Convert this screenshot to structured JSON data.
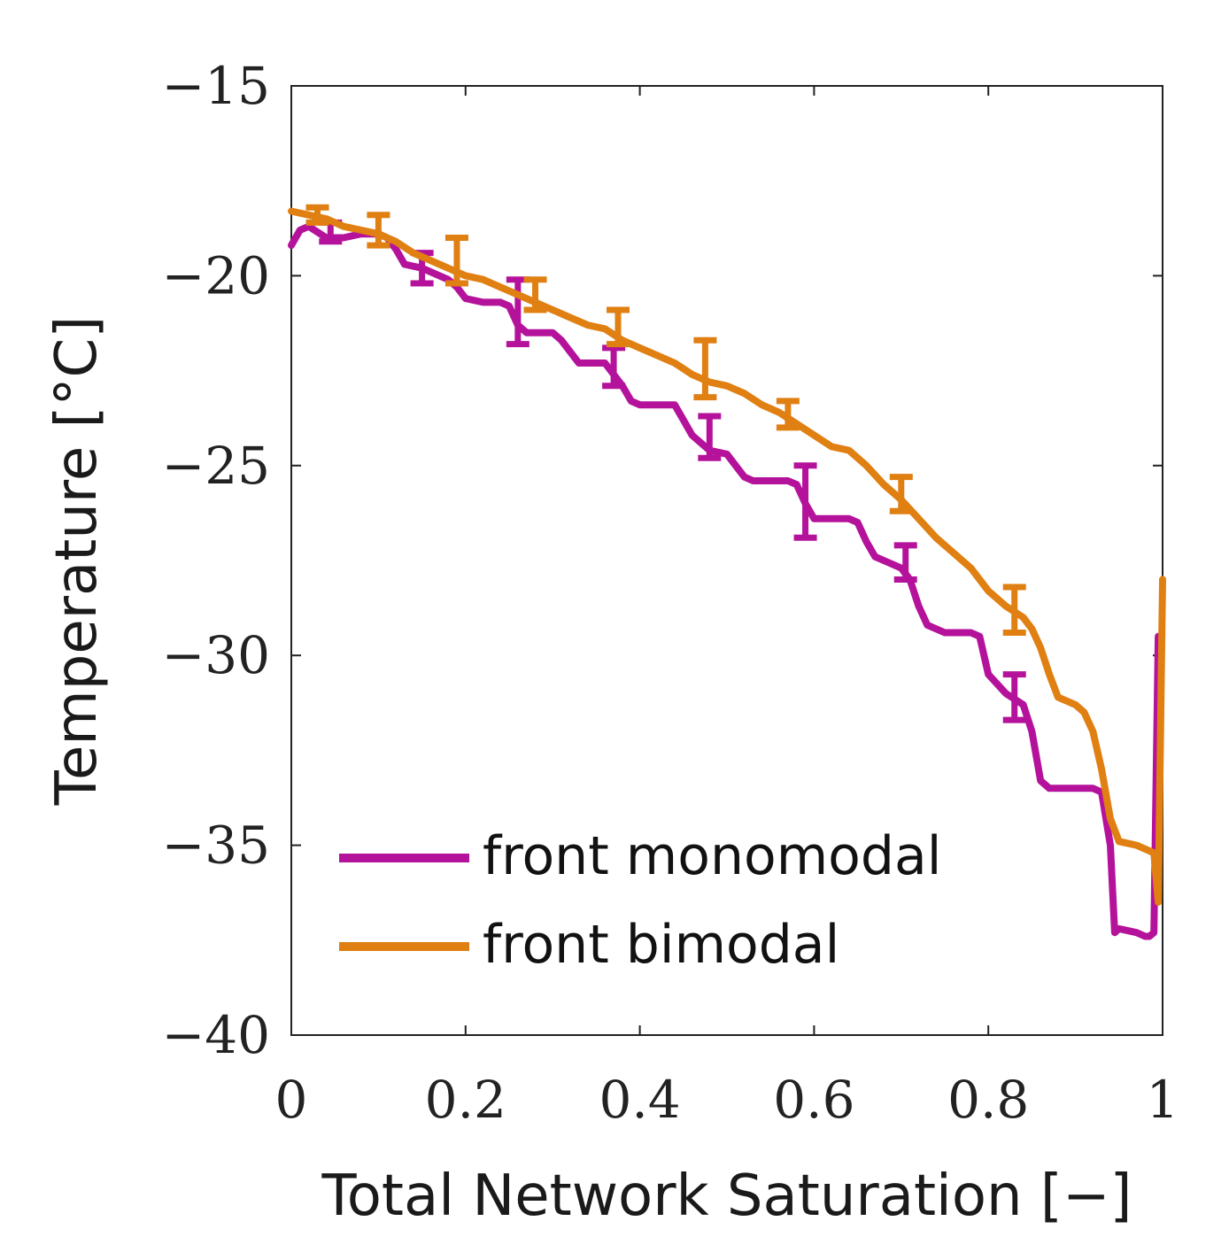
{
  "chart_data": {
    "type": "line",
    "title": "",
    "xlabel": "Total Network Saturation [−]",
    "ylabel": "Temperature [°C]",
    "xlim": [
      0,
      1
    ],
    "ylim": [
      -40,
      -15
    ],
    "xticks": [
      0,
      0.2,
      0.4,
      0.6,
      0.8,
      1
    ],
    "yticks": [
      -15,
      -20,
      -25,
      -30,
      -35,
      -40
    ],
    "xtick_labels": [
      "0",
      "0.2",
      "0.4",
      "0.6",
      "0.8",
      "1"
    ],
    "ytick_labels": [
      "−15",
      "−20",
      "−25",
      "−30",
      "−35",
      "−40"
    ],
    "grid": false,
    "legend_position": "bottom-left",
    "series": [
      {
        "name": "front monomodal",
        "color": "#b5129b",
        "x": [
          0.0,
          0.01,
          0.02,
          0.04,
          0.06,
          0.08,
          0.1,
          0.11,
          0.12,
          0.13,
          0.15,
          0.17,
          0.18,
          0.19,
          0.2,
          0.22,
          0.24,
          0.25,
          0.26,
          0.27,
          0.3,
          0.31,
          0.32,
          0.33,
          0.36,
          0.37,
          0.38,
          0.39,
          0.4,
          0.42,
          0.44,
          0.45,
          0.46,
          0.47,
          0.48,
          0.5,
          0.51,
          0.52,
          0.53,
          0.56,
          0.57,
          0.58,
          0.59,
          0.6,
          0.62,
          0.64,
          0.65,
          0.66,
          0.67,
          0.68,
          0.7,
          0.71,
          0.72,
          0.73,
          0.75,
          0.77,
          0.78,
          0.79,
          0.8,
          0.82,
          0.84,
          0.85,
          0.86,
          0.87,
          0.9,
          0.92,
          0.93,
          0.94,
          0.945,
          0.95,
          0.97,
          0.98,
          0.985,
          0.99,
          0.995
        ],
        "values": [
          -19.2,
          -18.8,
          -18.7,
          -19.0,
          -19.0,
          -18.9,
          -18.9,
          -19.0,
          -19.3,
          -19.7,
          -19.8,
          -20.0,
          -20.1,
          -20.3,
          -20.6,
          -20.7,
          -20.7,
          -20.8,
          -21.3,
          -21.5,
          -21.5,
          -21.7,
          -22.0,
          -22.3,
          -22.3,
          -22.6,
          -22.9,
          -23.3,
          -23.4,
          -23.4,
          -23.4,
          -23.8,
          -24.2,
          -24.4,
          -24.6,
          -24.7,
          -25.0,
          -25.3,
          -25.4,
          -25.4,
          -25.4,
          -25.5,
          -26.0,
          -26.4,
          -26.4,
          -26.4,
          -26.5,
          -27.0,
          -27.4,
          -27.5,
          -27.7,
          -28.0,
          -28.7,
          -29.2,
          -29.4,
          -29.4,
          -29.4,
          -29.5,
          -30.5,
          -31.0,
          -31.3,
          -32.0,
          -33.3,
          -33.5,
          -33.5,
          -33.5,
          -33.6,
          -35.0,
          -37.3,
          -37.2,
          -37.3,
          -37.4,
          -37.4,
          -37.3,
          -29.5
        ],
        "error_bars": [
          {
            "x": 0.045,
            "low": -19.1,
            "high": -18.6
          },
          {
            "x": 0.15,
            "low": -20.2,
            "high": -19.4
          },
          {
            "x": 0.26,
            "low": -21.8,
            "high": -20.1
          },
          {
            "x": 0.37,
            "low": -22.9,
            "high": -21.9
          },
          {
            "x": 0.48,
            "low": -24.8,
            "high": -23.7
          },
          {
            "x": 0.59,
            "low": -26.9,
            "high": -25.0
          },
          {
            "x": 0.705,
            "low": -28.0,
            "high": -27.1
          },
          {
            "x": 0.83,
            "low": -31.7,
            "high": -30.5
          }
        ]
      },
      {
        "name": "front bimodal",
        "color": "#e07f12",
        "x": [
          0.0,
          0.02,
          0.04,
          0.06,
          0.08,
          0.1,
          0.12,
          0.14,
          0.16,
          0.18,
          0.2,
          0.22,
          0.24,
          0.26,
          0.28,
          0.3,
          0.32,
          0.34,
          0.36,
          0.38,
          0.4,
          0.42,
          0.44,
          0.46,
          0.48,
          0.5,
          0.52,
          0.54,
          0.56,
          0.58,
          0.6,
          0.62,
          0.64,
          0.66,
          0.68,
          0.7,
          0.72,
          0.74,
          0.76,
          0.78,
          0.8,
          0.82,
          0.84,
          0.85,
          0.86,
          0.87,
          0.88,
          0.9,
          0.91,
          0.92,
          0.93,
          0.94,
          0.95,
          0.97,
          0.99,
          0.995,
          1.0
        ],
        "values": [
          -18.3,
          -18.4,
          -18.5,
          -18.7,
          -18.8,
          -18.9,
          -19.1,
          -19.4,
          -19.6,
          -19.8,
          -20.0,
          -20.1,
          -20.3,
          -20.5,
          -20.7,
          -20.9,
          -21.1,
          -21.3,
          -21.4,
          -21.7,
          -21.9,
          -22.1,
          -22.3,
          -22.6,
          -22.8,
          -22.9,
          -23.1,
          -23.4,
          -23.6,
          -23.9,
          -24.2,
          -24.5,
          -24.6,
          -25.0,
          -25.5,
          -25.9,
          -26.4,
          -26.9,
          -27.3,
          -27.7,
          -28.3,
          -28.7,
          -29.0,
          -29.3,
          -29.8,
          -30.5,
          -31.1,
          -31.3,
          -31.5,
          -32.0,
          -33.0,
          -34.3,
          -34.9,
          -35.0,
          -35.2,
          -36.5,
          -28.0
        ],
        "error_bars": [
          {
            "x": 0.03,
            "low": -18.6,
            "high": -18.2
          },
          {
            "x": 0.1,
            "low": -19.2,
            "high": -18.4
          },
          {
            "x": 0.19,
            "low": -20.2,
            "high": -19.0
          },
          {
            "x": 0.28,
            "low": -20.9,
            "high": -20.1
          },
          {
            "x": 0.375,
            "low": -21.8,
            "high": -20.9
          },
          {
            "x": 0.475,
            "low": -23.2,
            "high": -21.7
          },
          {
            "x": 0.57,
            "low": -24.0,
            "high": -23.3
          },
          {
            "x": 0.7,
            "low": -26.2,
            "high": -25.3
          },
          {
            "x": 0.83,
            "low": -29.4,
            "high": -28.2
          }
        ]
      }
    ]
  }
}
